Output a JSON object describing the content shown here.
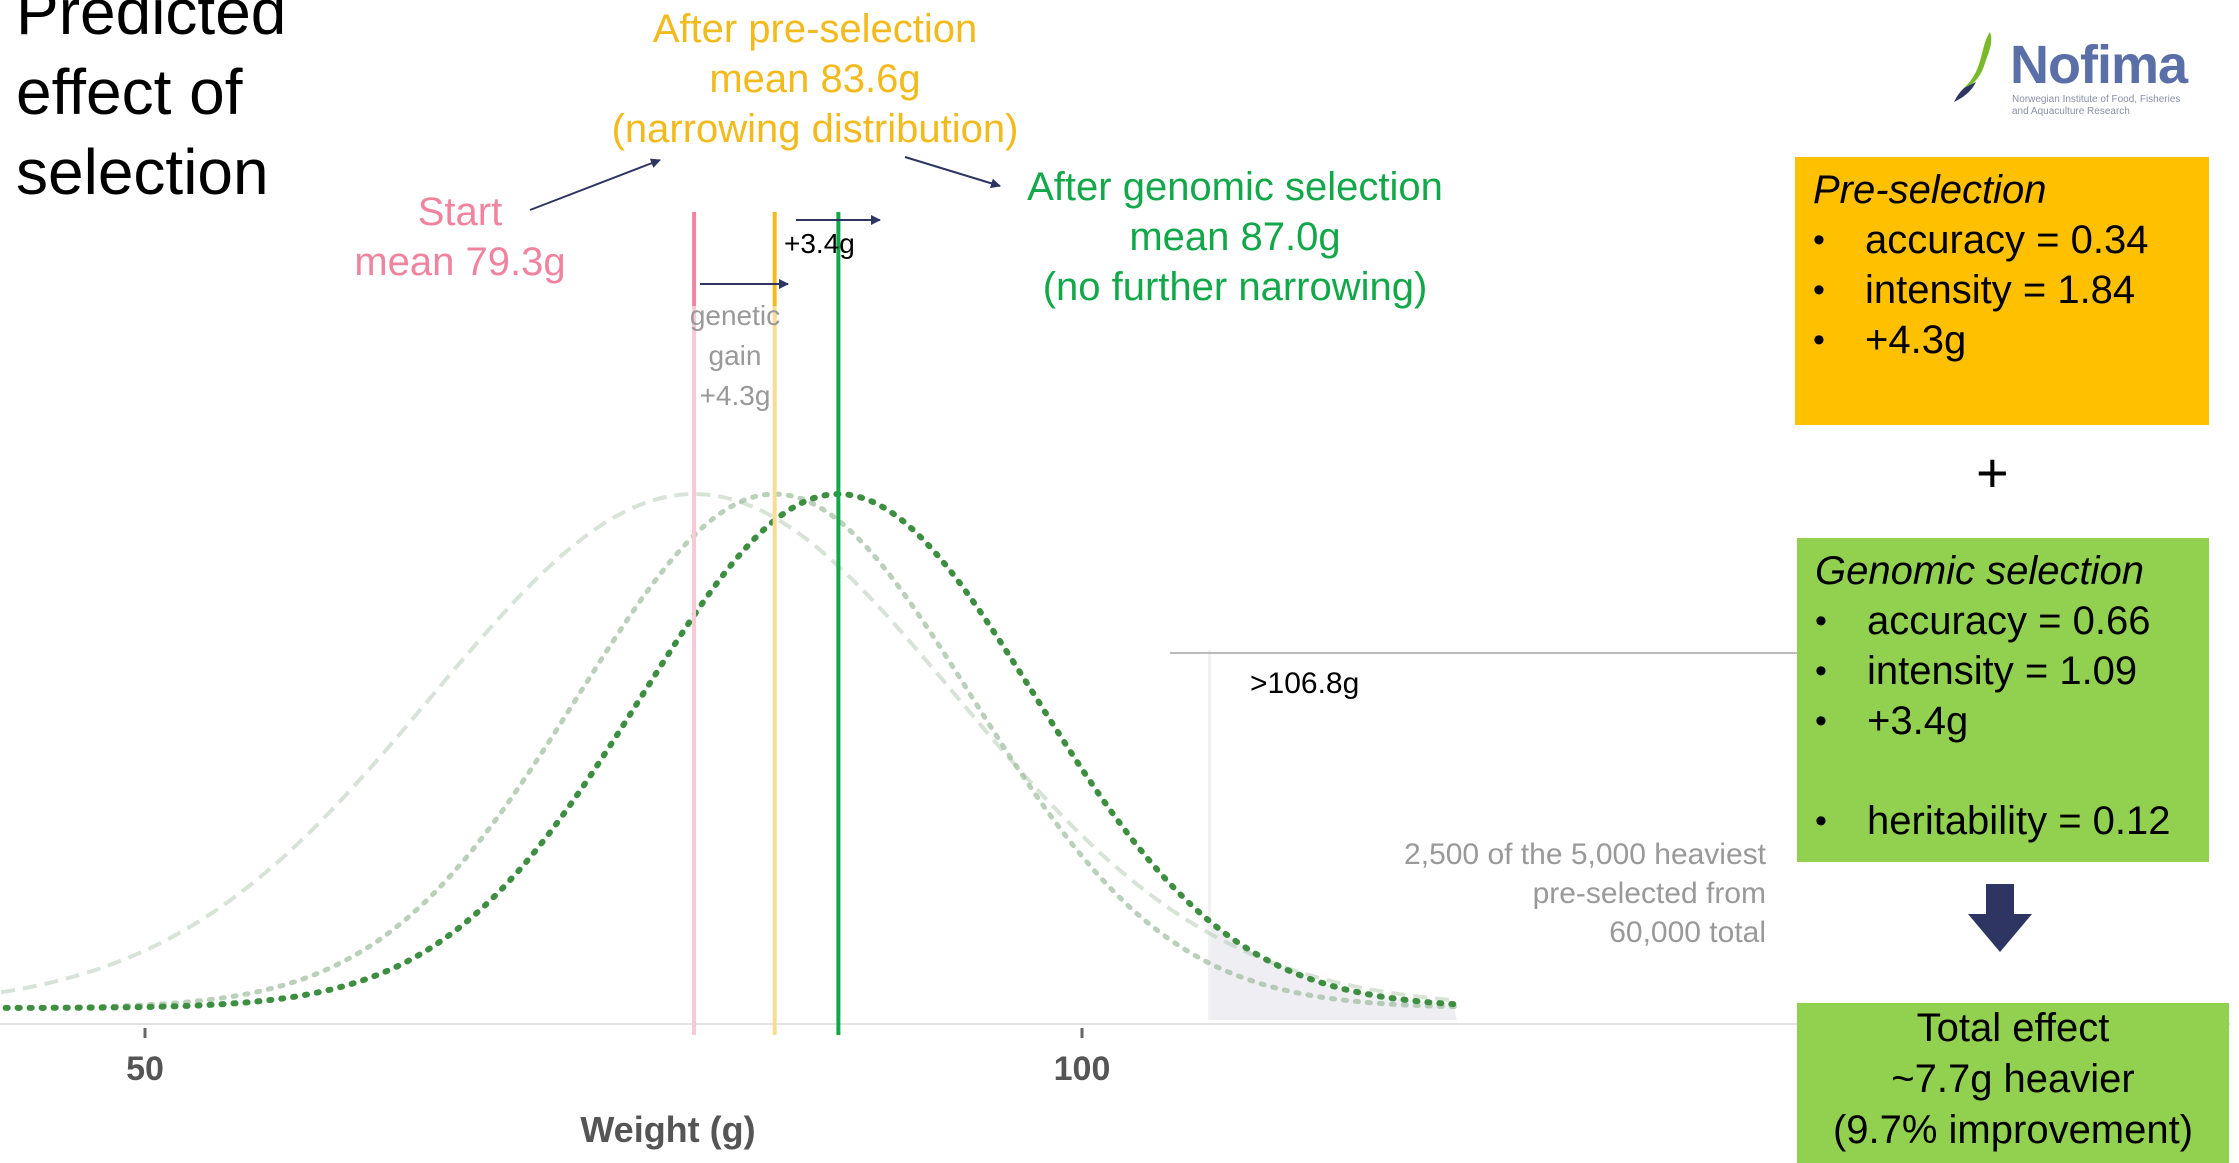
{
  "slide": {
    "title_lines": [
      "Predicted",
      "effect of",
      "selection"
    ]
  },
  "annotations": {
    "start": [
      "Start",
      "mean 79.3g"
    ],
    "pre_selection": [
      "After pre-selection",
      "mean 83.6g",
      "(narrowing distribution)"
    ],
    "genomic": [
      "After genomic selection",
      "mean 87.0g",
      "(no further narrowing)"
    ],
    "genetic_gain": [
      "genetic",
      "gain",
      "+4.3g"
    ],
    "second_gain": "+3.4g",
    "threshold": ">106.8g",
    "tail_note": [
      "2,500 of the 5,000 heaviest",
      "pre-selected from",
      "60,000 total"
    ]
  },
  "logo": {
    "word": "Nofima",
    "subtitle": [
      "Norwegian Institute of Food, Fisheries",
      "and Aquaculture Research"
    ]
  },
  "boxes": {
    "pre_selection": {
      "title": "Pre-selection",
      "items": [
        "accuracy = 0.34",
        "intensity = 1.84",
        "+4.3g"
      ]
    },
    "plus": "+",
    "genomic": {
      "title": "Genomic selection",
      "items": [
        "accuracy = 0.66",
        "intensity = 1.09",
        "+3.4g"
      ],
      "extra_item": "heritability = 0.12"
    },
    "total": [
      "Total effect",
      "~7.7g heavier",
      "(9.7% improvement)"
    ]
  },
  "colors": {
    "start": "#F0849F",
    "pre_selection": "#F2BA1D",
    "genomic": "#12A84A",
    "curve": "#3E8E41",
    "arrow": "#2E3563",
    "box_pre": "#FFC000",
    "box_gen": "#92D050"
  },
  "chart_data": {
    "type": "line",
    "xlabel": "Weight (g)",
    "ylabel": "",
    "xlim": [
      40,
      120
    ],
    "x_ticks": [
      50,
      100
    ],
    "series": [
      {
        "mean": 79.3,
        "sd": 14,
        "style": "faint-dashed"
      },
      {
        "mean": 83.6,
        "sd": 10.5,
        "style": "faint-dotted"
      },
      {
        "mean": 87.0,
        "sd": 10.5,
        "style": "dotted"
      }
    ],
    "mean_lines": [
      {
        "value": 79.3,
        "color": "#F0849F"
      },
      {
        "value": 83.6,
        "color": "#F2BA1D"
      },
      {
        "value": 87.0,
        "color": "#12A84A"
      }
    ],
    "threshold": 106.8,
    "grid": false
  }
}
